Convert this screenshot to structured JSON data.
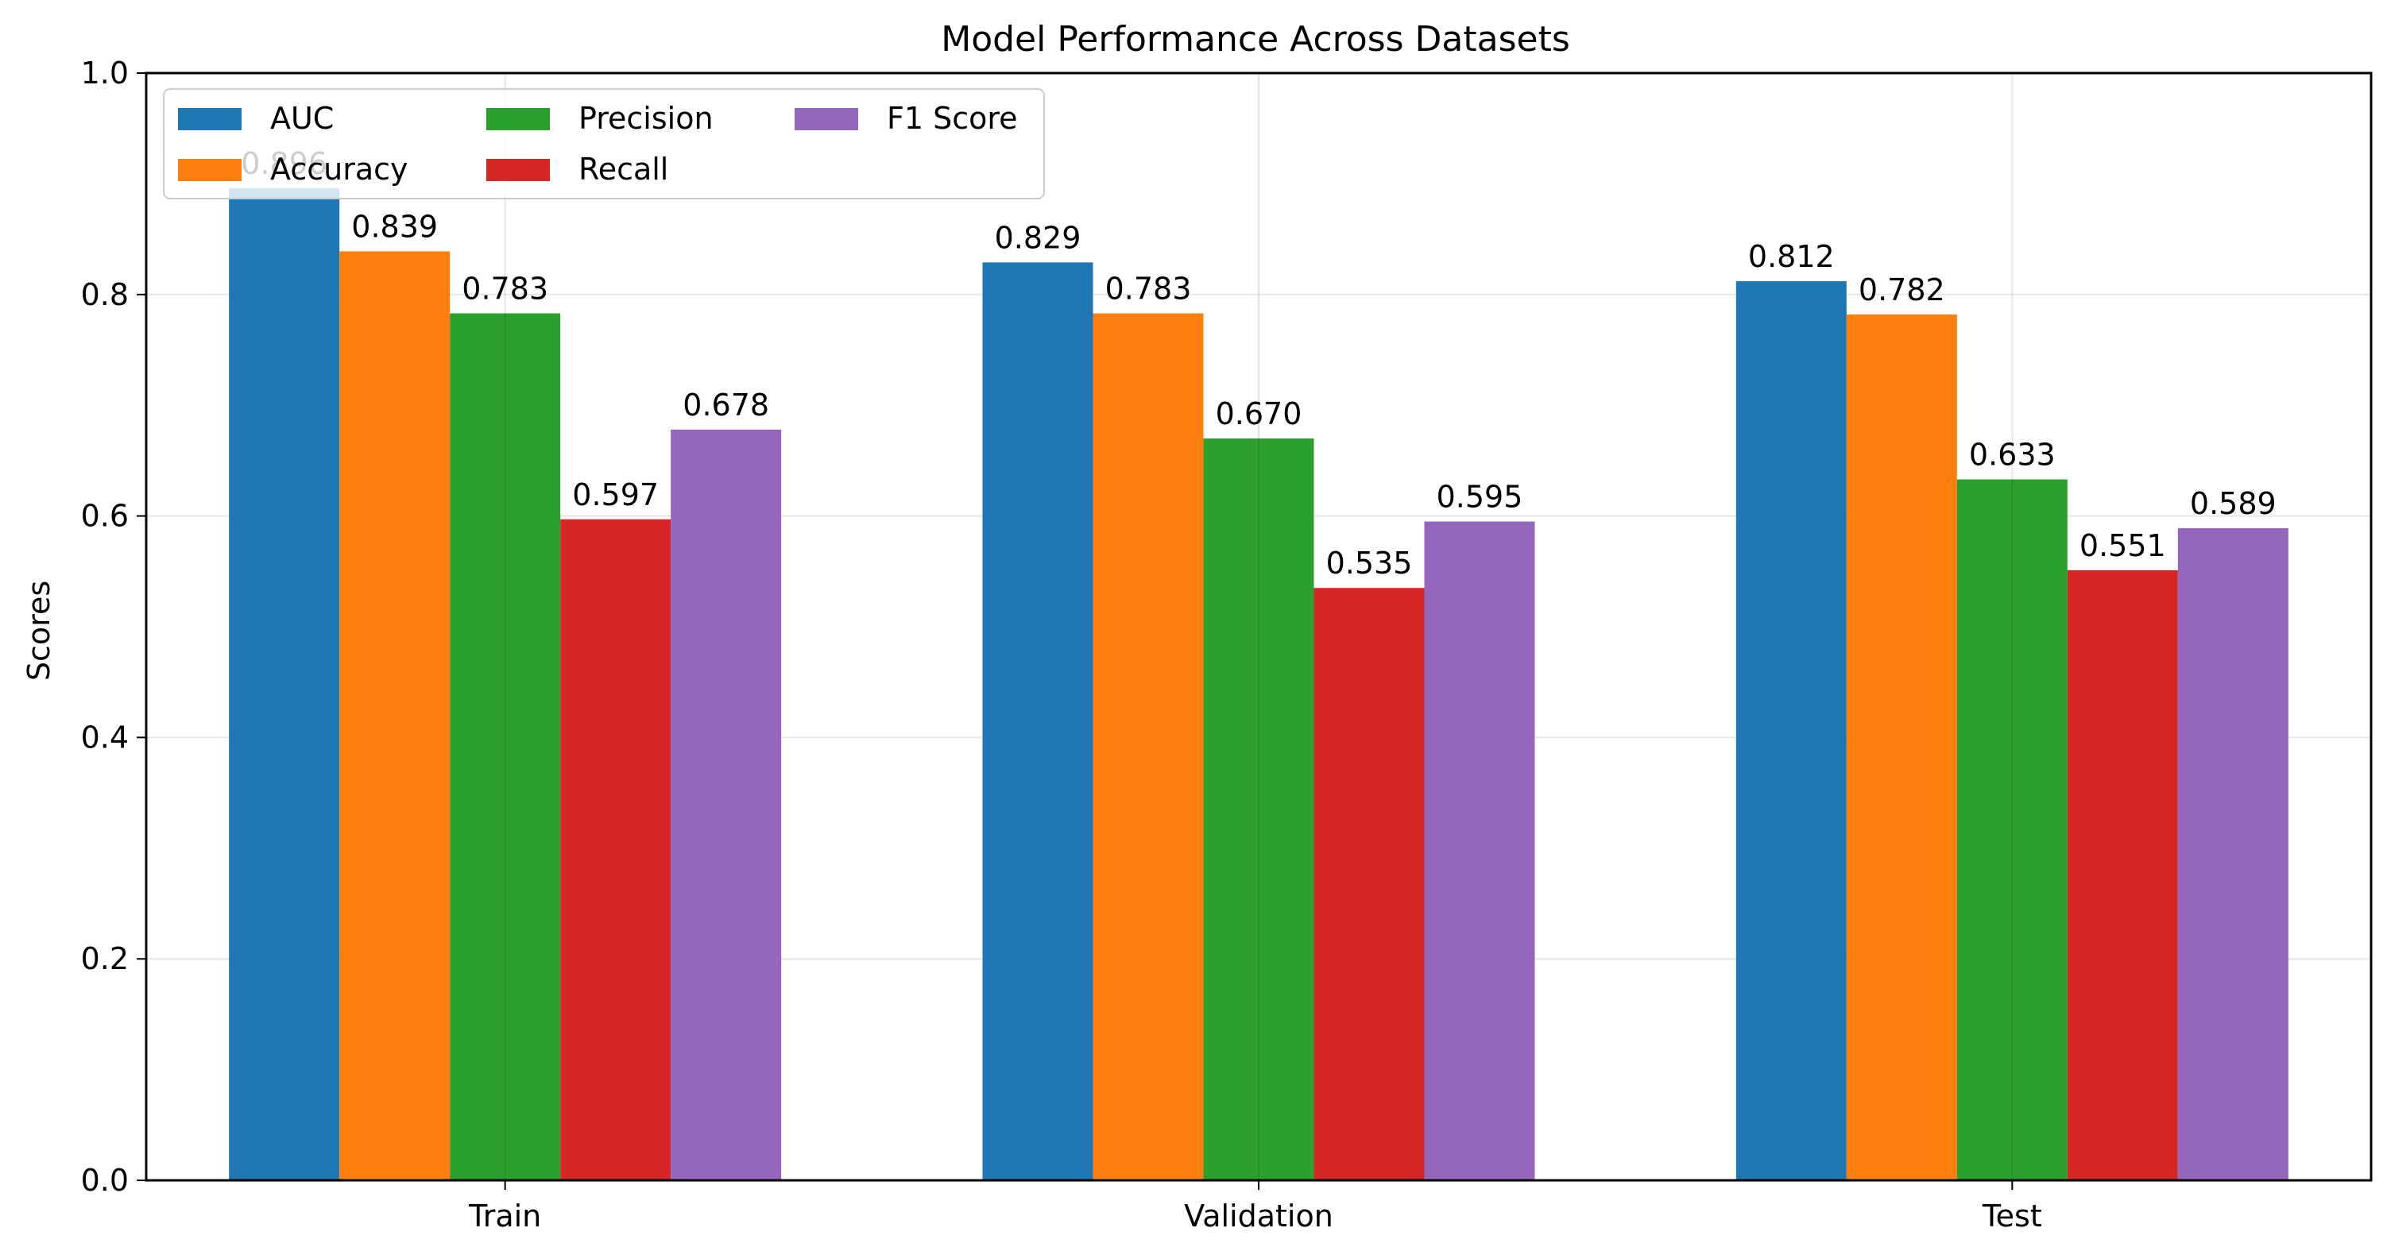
{
  "chart_data": {
    "type": "bar",
    "title": "Model Performance Across Datasets",
    "xlabel": "",
    "ylabel": "Scores",
    "categories": [
      "Train",
      "Validation",
      "Test"
    ],
    "series": [
      {
        "name": "AUC",
        "values": [
          0.896,
          0.829,
          0.812
        ],
        "labels": [
          "0.896",
          "0.829",
          "0.812"
        ],
        "color": "#1f77b4"
      },
      {
        "name": "Accuracy",
        "values": [
          0.839,
          0.783,
          0.782
        ],
        "labels": [
          "0.839",
          "0.783",
          "0.782"
        ],
        "color": "#ff7f0e"
      },
      {
        "name": "Precision",
        "values": [
          0.783,
          0.67,
          0.633
        ],
        "labels": [
          "0.783",
          "0.670",
          "0.633"
        ],
        "color": "#2ca02c"
      },
      {
        "name": "Recall",
        "values": [
          0.597,
          0.535,
          0.551
        ],
        "labels": [
          "0.597",
          "0.535",
          "0.551"
        ],
        "color": "#d62728"
      },
      {
        "name": "F1 Score",
        "values": [
          0.678,
          0.595,
          0.589
        ],
        "labels": [
          "0.678",
          "0.595",
          "0.589"
        ],
        "color": "#9467bd"
      }
    ],
    "ylim": [
      0,
      1.0
    ],
    "yticks": [
      "0.0",
      "0.2",
      "0.4",
      "0.6",
      "0.8",
      "1.0"
    ],
    "grid": true,
    "legend": {
      "placement": "upper-left",
      "columns": 3
    }
  }
}
